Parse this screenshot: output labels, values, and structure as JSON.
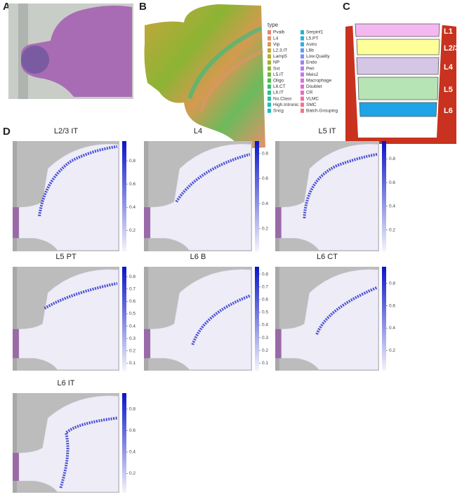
{
  "panels": {
    "a": "A",
    "b": "B",
    "c": "C",
    "d": "D"
  },
  "legend": {
    "title": "type",
    "items": [
      {
        "name": "Pvalb",
        "color": "#f08070"
      },
      {
        "name": "L4",
        "color": "#e8906a"
      },
      {
        "name": "Vip",
        "color": "#d99a4c"
      },
      {
        "name": "L2.3.IT",
        "color": "#c9a438"
      },
      {
        "name": "Lamp5",
        "color": "#b8aa2c"
      },
      {
        "name": "NP",
        "color": "#a3b02c"
      },
      {
        "name": "Sst",
        "color": "#8cb434"
      },
      {
        "name": "L5.IT",
        "color": "#6cba3c"
      },
      {
        "name": "Oligo",
        "color": "#4cbc4c"
      },
      {
        "name": "L6.CT",
        "color": "#34be6c"
      },
      {
        "name": "L6.IT",
        "color": "#2cbe88"
      },
      {
        "name": "No.Class",
        "color": "#28bea0"
      },
      {
        "name": "High.Intronic",
        "color": "#24bcb4"
      },
      {
        "name": "Sncg",
        "color": "#20bac4"
      },
      {
        "name": "Serpinf1",
        "color": "#20b6d2"
      },
      {
        "name": "L5.PT",
        "color": "#28b0e0"
      },
      {
        "name": "Astro",
        "color": "#3ca8ec"
      },
      {
        "name": "L6b",
        "color": "#5c9cf4"
      },
      {
        "name": "Low.Quality",
        "color": "#808ef8"
      },
      {
        "name": "Endo",
        "color": "#9c84f8"
      },
      {
        "name": "Peri",
        "color": "#b47cf4"
      },
      {
        "name": "Meis2",
        "color": "#c876ec"
      },
      {
        "name": "Macrophage",
        "color": "#d870e0"
      },
      {
        "name": "Doublet",
        "color": "#e46cd0"
      },
      {
        "name": "CR",
        "color": "#ec6cbc"
      },
      {
        "name": "VLMC",
        "color": "#f070a8"
      },
      {
        "name": "SMC",
        "color": "#f07494"
      },
      {
        "name": "Batch.Grouping",
        "color": "#f07a80"
      }
    ]
  },
  "layers": [
    {
      "label": "L1",
      "color": "#f4b8f0"
    },
    {
      "label": "L2/3",
      "color": "#ffff99"
    },
    {
      "label": "L4",
      "color": "#d6c6e6"
    },
    {
      "label": "L5",
      "color": "#b6e4b4"
    },
    {
      "label": "L6",
      "color": "#1ea4e6"
    }
  ],
  "maps": [
    {
      "title": "L2/3 IT",
      "clim": [
        0.02,
        0.97
      ],
      "ticks": [
        0.8,
        0.6,
        0.4,
        0.2
      ]
    },
    {
      "title": "L4",
      "clim": [
        0.02,
        0.9
      ],
      "ticks": [
        0.8,
        0.6,
        0.4,
        0.2
      ]
    },
    {
      "title": "L5 IT",
      "clim": [
        0.02,
        0.95
      ],
      "ticks": [
        0.8,
        0.6,
        0.4,
        0.2
      ]
    },
    {
      "title": "L5 PT",
      "clim": [
        0.04,
        0.88
      ],
      "ticks": [
        0.8,
        0.7,
        0.6,
        0.5,
        0.4,
        0.3,
        0.2,
        0.1
      ]
    },
    {
      "title": "L6 B",
      "clim": [
        0.04,
        0.86
      ],
      "ticks": [
        0.8,
        0.7,
        0.6,
        0.5,
        0.4,
        0.3,
        0.2,
        0.1
      ]
    },
    {
      "title": "L6 CT",
      "clim": [
        0.02,
        0.95
      ],
      "ticks": [
        0.8,
        0.6,
        0.4,
        0.2
      ]
    },
    {
      "title": "L6 IT",
      "clim": [
        0.02,
        0.95
      ],
      "ticks": [
        0.8,
        0.6,
        0.4,
        0.2
      ]
    }
  ]
}
